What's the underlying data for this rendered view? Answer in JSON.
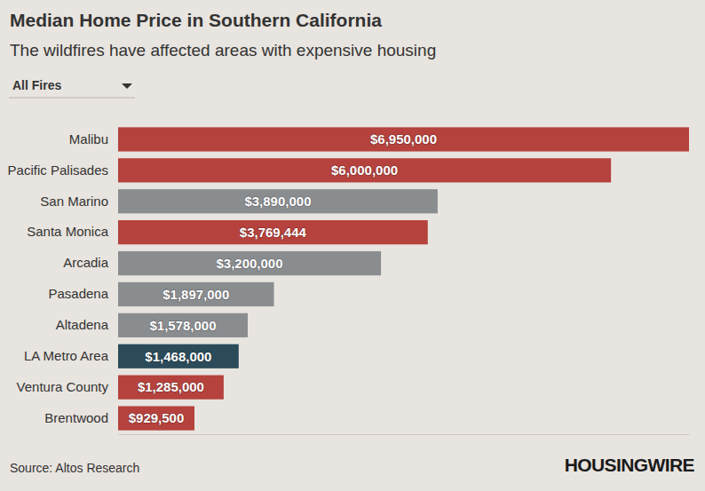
{
  "chart_data": {
    "type": "bar",
    "title": "Median Home Price in Southern California",
    "subtitle": "The wildfires have affected areas with expensive housing",
    "orientation": "horizontal",
    "categories": [
      "Malibu",
      "Pacific Palisades",
      "San Marino",
      "Santa Monica",
      "Arcadia",
      "Pasadena",
      "Altadena",
      "LA Metro Area",
      "Ventura County",
      "Brentwood"
    ],
    "values": [
      6950000,
      6000000,
      3890000,
      3769444,
      3200000,
      1897000,
      1578000,
      1468000,
      1285000,
      929500
    ],
    "value_labels": [
      "$6,950,000",
      "$6,000,000",
      "$3,890,000",
      "$3,769,444",
      "$3,200,000",
      "$1,897,000",
      "$1,578,000",
      "$1,468,000",
      "$1,285,000",
      "$929,500"
    ],
    "colors": [
      "#b5423d",
      "#b5423d",
      "#8a8d90",
      "#b5423d",
      "#8a8d90",
      "#8a8d90",
      "#8a8d90",
      "#2b4b5a",
      "#b5423d",
      "#b5423d"
    ],
    "xlim": [
      0,
      6950000
    ],
    "data_labels": true,
    "tick_labels": "y"
  },
  "page": {
    "filter": "All Fires",
    "source": "Source: Altos Research",
    "brand": "HOUSINGWIRE"
  }
}
